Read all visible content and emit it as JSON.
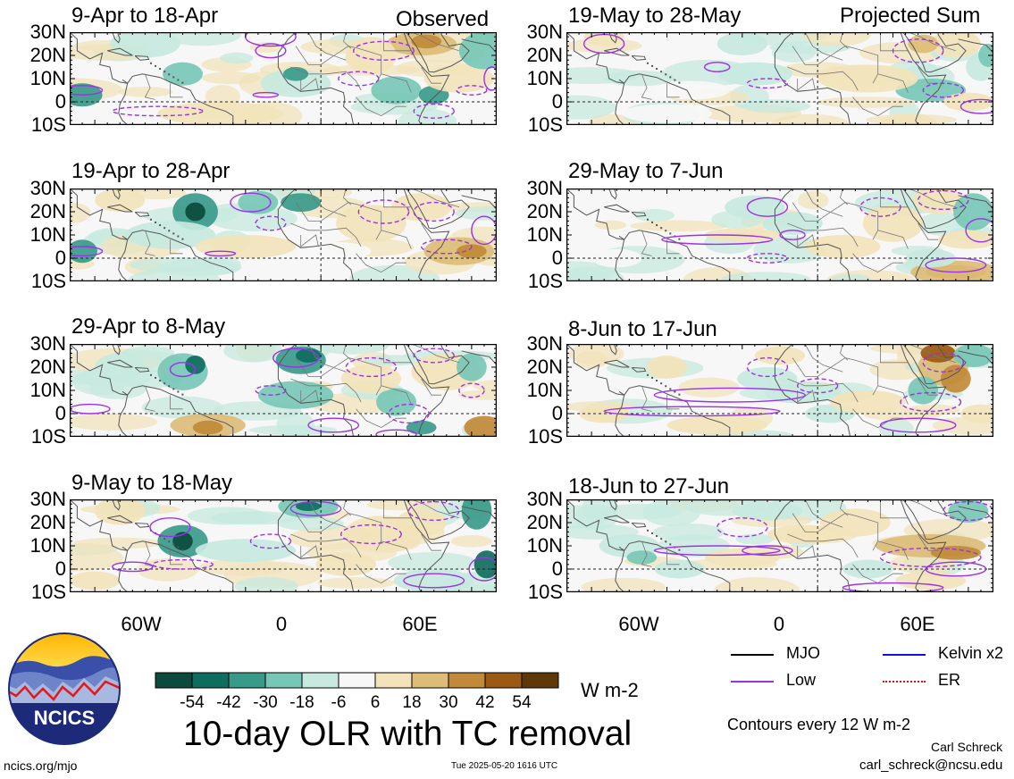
{
  "observed_label": "Observed",
  "projected_label": "Projected Sum",
  "panels_left": [
    {
      "title": "9-Apr to 18-Apr"
    },
    {
      "title": "19-Apr to 28-Apr"
    },
    {
      "title": "29-Apr to 8-May"
    },
    {
      "title": "9-May to 18-May"
    }
  ],
  "panels_right": [
    {
      "title": "19-May to 28-May"
    },
    {
      "title": "29-May to 7-Jun"
    },
    {
      "title": "8-Jun to 17-Jun"
    },
    {
      "title": "18-Jun to 27-Jun"
    }
  ],
  "lat_labels": [
    "30N",
    "20N",
    "10N",
    "0",
    "10S"
  ],
  "lon_labels": [
    "60W",
    "0",
    "60E"
  ],
  "colorbar": {
    "ticks": [
      "-54",
      "-42",
      "-30",
      "-18",
      "-6",
      "6",
      "18",
      "30",
      "42",
      "54"
    ],
    "colors": [
      "#0b4a3c",
      "#0e6d5e",
      "#3a9a8a",
      "#78c7b6",
      "#c7e9df",
      "#f7f7f7",
      "#f2e3ba",
      "#dcbc78",
      "#c18a3a",
      "#9a5a14",
      "#5e3806"
    ],
    "units": "W m-2"
  },
  "legend": [
    {
      "label": "MJO",
      "color": "#000000"
    },
    {
      "label": "Kelvin x2",
      "color": "#1010e0"
    },
    {
      "label": "Low",
      "color": "#9a32e6"
    },
    {
      "label": "ER",
      "color": "#e01010"
    }
  ],
  "main_title": "10-day OLR with TC removal",
  "contours_note": "Contours every 12 W m-2",
  "logo_text": "NCICS",
  "website": "ncics.org/mjo",
  "timestamp": "Tue 2025-05-20 1616 UTC",
  "author": "Carl Schreck",
  "email": "carl_schreck@ncsu.edu"
}
